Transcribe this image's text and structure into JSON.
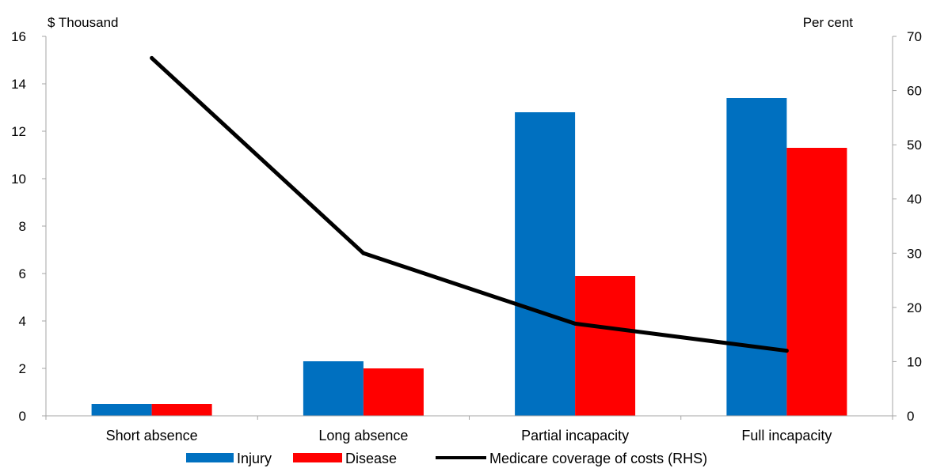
{
  "chart_data": {
    "type": "bar",
    "title": "",
    "left_axis_unit": "$ Thousand",
    "right_axis_unit": "Per cent",
    "categories": [
      "Short absence",
      "Long absence",
      "Partial incapacity",
      "Full incapacity"
    ],
    "series": [
      {
        "name": "Injury",
        "type": "bar",
        "axis": "left",
        "color": "#0070c0",
        "values": [
          0.5,
          2.3,
          12.8,
          13.4
        ]
      },
      {
        "name": "Disease",
        "type": "bar",
        "axis": "left",
        "color": "#ff0000",
        "values": [
          0.5,
          2.0,
          5.9,
          11.3
        ]
      },
      {
        "name": "Medicare coverage of costs (RHS)",
        "type": "line",
        "axis": "right",
        "color": "#000000",
        "values": [
          66,
          30,
          17,
          12
        ]
      }
    ],
    "ylim_left": [
      0,
      16
    ],
    "yticks_left": [
      "0",
      "2",
      "4",
      "6",
      "8",
      "10",
      "12",
      "14",
      "16"
    ],
    "ylim_right": [
      0,
      70
    ],
    "yticks_right": [
      "0",
      "10",
      "20",
      "30",
      "40",
      "50",
      "60",
      "70"
    ],
    "grid": false,
    "legend_position": "bottom"
  }
}
